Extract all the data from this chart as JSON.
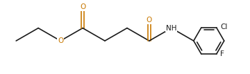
{
  "bg_color": "#ffffff",
  "line_color": "#1a1a1a",
  "o_color": "#c87800",
  "figsize": [
    3.6,
    1.07
  ],
  "dpi": 100,
  "font_size": 7.5,
  "lw": 1.2,
  "bl": 1.0,
  "xlim": [
    -0.3,
    8.8
  ],
  "ylim": [
    -1.3,
    1.6
  ]
}
